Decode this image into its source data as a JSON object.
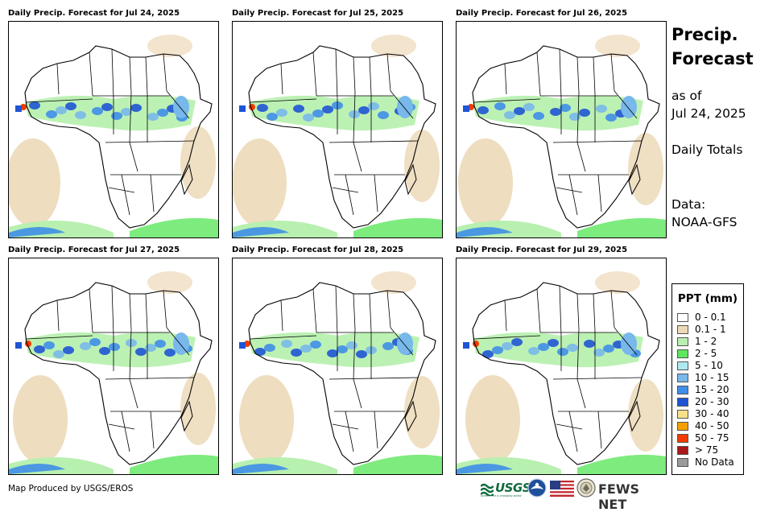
{
  "panels": [
    {
      "title": "Daily Precip. Forecast for Jul 24, 2025"
    },
    {
      "title": "Daily Precip. Forecast for Jul 25, 2025"
    },
    {
      "title": "Daily Precip. Forecast for Jul 26, 2025"
    },
    {
      "title": "Daily Precip. Forecast for Jul 27, 2025"
    },
    {
      "title": "Daily Precip. Forecast for Jul 28, 2025"
    },
    {
      "title": "Daily Precip. Forecast for Jul 29, 2025"
    }
  ],
  "side": {
    "title_line1": "Precip.",
    "title_line2": "Forecast",
    "as_of_line1": "as of",
    "as_of_line2": "Jul 24, 2025",
    "totals": "Daily Totals",
    "data_line1": "Data:",
    "data_line2": "NOAA-GFS"
  },
  "legend": {
    "title": "PPT (mm)",
    "items": [
      {
        "label": "0 - 0.1",
        "color": "#ffffff"
      },
      {
        "label": "0.1 - 1",
        "color": "#ecd9b8"
      },
      {
        "label": "1 - 2",
        "color": "#b8f0b0"
      },
      {
        "label": "2 - 5",
        "color": "#5ee65e"
      },
      {
        "label": "5 - 10",
        "color": "#aee9f0"
      },
      {
        "label": "10 - 15",
        "color": "#78b8ea"
      },
      {
        "label": "15 - 20",
        "color": "#3f8ee8"
      },
      {
        "label": "20 - 30",
        "color": "#1f55d4"
      },
      {
        "label": "30 - 40",
        "color": "#f6e08a"
      },
      {
        "label": "40 - 50",
        "color": "#f5a000"
      },
      {
        "label": "50 - 75",
        "color": "#f03c00"
      },
      {
        "label": "> 75",
        "color": "#a81818"
      },
      {
        "label": "No Data",
        "color": "#999999"
      }
    ]
  },
  "footer": {
    "credit": "Map Produced by USGS/EROS",
    "logos": {
      "usgs": "USGS",
      "usgs_tagline": "science for a changing world",
      "fews": "FEWS NET"
    }
  }
}
